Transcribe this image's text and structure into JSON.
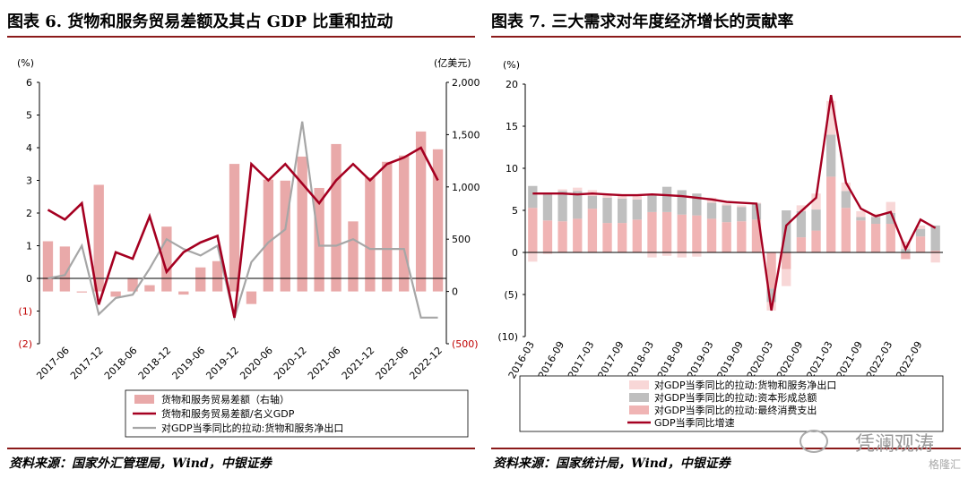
{
  "left": {
    "title": "图表 6. 货物和服务贸易差额及其占 GDP 比重和拉动",
    "source": "资料来源：国家外汇管理局，Wind，中银证券",
    "left_unit": "(%)",
    "right_unit": "(亿美元)",
    "left_ticks": [
      "6",
      "5",
      "4",
      "3",
      "2",
      "1",
      "0",
      "(1)",
      "(2)"
    ],
    "right_ticks": [
      "2,000",
      "1,500",
      "1,000",
      "500",
      "0",
      "(500)"
    ],
    "x_ticks": [
      "2017-06",
      "2017-12",
      "2018-06",
      "2018-12",
      "2019-06",
      "2019-12",
      "2020-06",
      "2020-12",
      "2021-06",
      "2021-12",
      "2022-06",
      "2022-12"
    ],
    "legend": [
      "货物和服务贸易差额（右轴）",
      "货物和服务贸易差额/名义GDP",
      "对GDP当季同比的拉动:货物和服务净出口"
    ]
  },
  "right": {
    "title": "图表 7. 三大需求对年度经济增长的贡献率",
    "source": "资料来源：国家统计局，Wind，中银证券",
    "unit": "(%)",
    "y_ticks": [
      "20",
      "15",
      "10",
      "5",
      "0",
      "(5)",
      "(10)"
    ],
    "x_ticks": [
      "2016-03",
      "2016-09",
      "2017-03",
      "2017-09",
      "2018-03",
      "2018-09",
      "2019-03",
      "2019-09",
      "2020-03",
      "2020-09",
      "2021-03",
      "2021-09",
      "2022-03",
      "2022-09"
    ],
    "legend": [
      "对GDP当季同比的拉动:货物和服务净出口",
      "对GDP当季同比的拉动:资本形成总额",
      "对GDP当季同比的拉动:最终消费支出",
      "GDP当季同比增速"
    ]
  },
  "watermark": "凭澜观涛",
  "brand": "格隆汇",
  "colors": {
    "bar": "#e9a9a9",
    "line_red": "#a50021",
    "line_gray": "#a6a6a6",
    "capital": "#bfbfbf",
    "consumption": "#f0b4b4",
    "export": "#f8d7d7",
    "rule": "#8b1a1a"
  },
  "chart_data": [
    {
      "type": "bar",
      "title": "图表 6. 货物和服务贸易差额及其占 GDP 比重和拉动",
      "categories": [
        "2017-03",
        "2017-06",
        "2017-09",
        "2017-12",
        "2018-03",
        "2018-06",
        "2018-09",
        "2018-12",
        "2019-03",
        "2019-06",
        "2019-09",
        "2019-12",
        "2020-03",
        "2020-06",
        "2020-09",
        "2020-12",
        "2021-03",
        "2021-06",
        "2021-09",
        "2021-12",
        "2022-03",
        "2022-06",
        "2022-09",
        "2022-12"
      ],
      "series": [
        {
          "name": "货物和服务贸易差额（右轴）",
          "axis": "right",
          "type": "bar",
          "values": [
            480,
            430,
            -10,
            1020,
            -50,
            130,
            60,
            620,
            -30,
            230,
            290,
            1220,
            -120,
            1070,
            1060,
            1290,
            990,
            1410,
            670,
            1090,
            1240,
            1300,
            1530,
            1360
          ]
        },
        {
          "name": "货物和服务贸易差额/名义GDP",
          "axis": "left",
          "type": "line",
          "values": [
            2.1,
            1.8,
            2.3,
            -0.8,
            0.8,
            0.6,
            1.9,
            0.2,
            0.8,
            1.1,
            1.3,
            -1.2,
            3.5,
            3.0,
            3.5,
            2.9,
            2.3,
            3.0,
            3.5,
            3.0,
            3.5,
            3.7,
            4.0,
            3.0
          ]
        },
        {
          "name": "对GDP当季同比的拉动:货物和服务净出口",
          "axis": "left",
          "type": "line",
          "values": [
            0.0,
            0.1,
            1.0,
            -1.1,
            -0.6,
            -0.5,
            0.3,
            1.2,
            0.9,
            0.7,
            1.0,
            -1.2,
            0.5,
            1.1,
            1.5,
            4.8,
            1.0,
            1.0,
            1.2,
            0.9,
            0.9,
            0.9,
            -1.2,
            -1.2
          ]
        }
      ],
      "ylim_left": [
        -2,
        6
      ],
      "ylim_right": [
        -500,
        2000
      ]
    },
    {
      "type": "bar",
      "title": "图表 7. 三大需求对年度经济增长的贡献率",
      "categories": [
        "2016-03",
        "2016-06",
        "2016-09",
        "2016-12",
        "2017-03",
        "2017-06",
        "2017-09",
        "2017-12",
        "2018-03",
        "2018-06",
        "2018-09",
        "2018-12",
        "2019-03",
        "2019-06",
        "2019-09",
        "2019-12",
        "2020-03",
        "2020-06",
        "2020-09",
        "2020-12",
        "2021-03",
        "2021-06",
        "2021-09",
        "2021-12",
        "2022-03",
        "2022-06",
        "2022-09",
        "2022-12"
      ],
      "series": [
        {
          "name": "对GDP当季同比的拉动:最终消费支出",
          "values": [
            5.3,
            3.8,
            3.7,
            4.0,
            5.2,
            3.5,
            3.5,
            3.9,
            4.8,
            4.8,
            4.5,
            4.4,
            4.0,
            3.6,
            3.7,
            3.9,
            -4.3,
            -2.0,
            1.8,
            2.6,
            9.0,
            5.3,
            3.8,
            3.4,
            3.4,
            -0.8,
            1.9,
            0.2
          ]
        },
        {
          "name": "对GDP当季同比的拉动:资本形成总额",
          "values": [
            2.6,
            3.2,
            3.6,
            3.3,
            1.5,
            3.0,
            2.9,
            2.4,
            2.1,
            3.0,
            2.9,
            2.6,
            1.9,
            2.0,
            1.7,
            1.9,
            -1.6,
            5.0,
            3.1,
            2.5,
            5.0,
            2.0,
            0.4,
            0.8,
            1.3,
            0.4,
            0.9,
            3.0
          ]
        },
        {
          "name": "对GDP当季同比的拉动:货物和服务净出口",
          "values": [
            -1.1,
            -0.2,
            0.2,
            0.4,
            0.7,
            0.4,
            0.5,
            0.5,
            -0.6,
            -0.4,
            -0.6,
            -0.5,
            0.6,
            0.2,
            0.2,
            0.1,
            -1.0,
            -2.0,
            0.7,
            1.9,
            4.0,
            1.0,
            0.7,
            0.4,
            1.3,
            0.9,
            0.4,
            -1.2
          ]
        },
        {
          "name": "GDP当季同比增速",
          "type": "line",
          "values": [
            7.0,
            7.0,
            7.0,
            6.9,
            7.0,
            6.9,
            6.8,
            6.8,
            6.9,
            6.8,
            6.7,
            6.5,
            6.3,
            6.0,
            5.9,
            5.8,
            -6.9,
            3.2,
            4.9,
            6.5,
            18.7,
            8.3,
            5.2,
            4.3,
            4.8,
            0.4,
            3.9,
            2.9
          ]
        }
      ],
      "ylim": [
        -10,
        20
      ]
    }
  ]
}
